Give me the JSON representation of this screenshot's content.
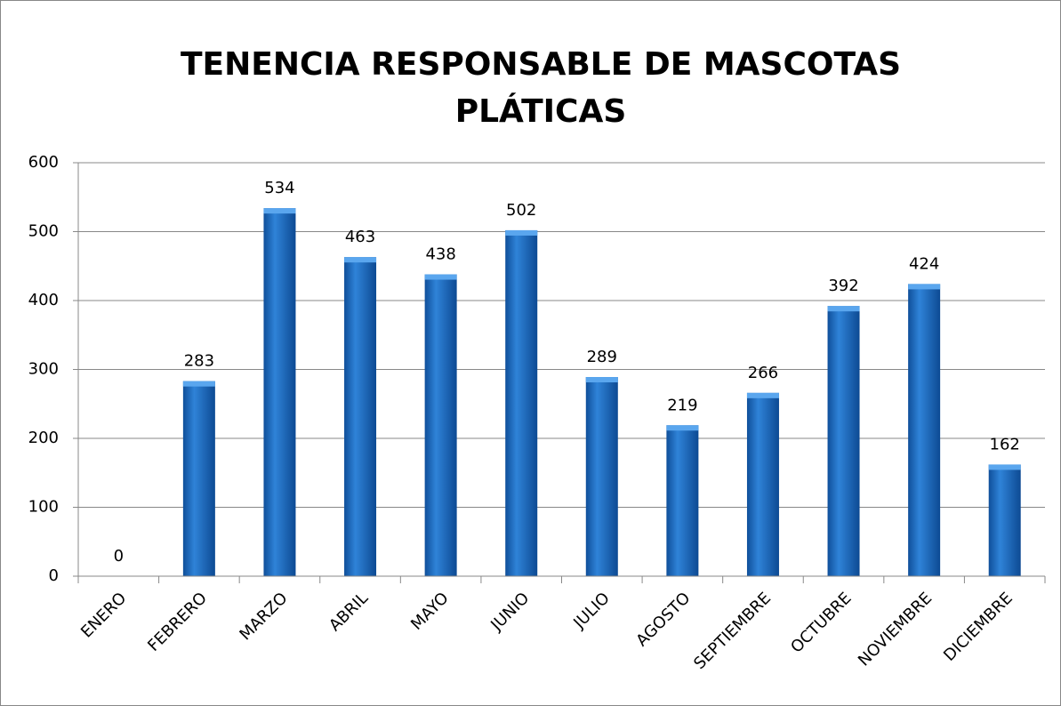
{
  "chart_data": {
    "type": "bar",
    "title": [
      "TENENCIA RESPONSABLE DE MASCOTAS",
      "PLÁTICAS"
    ],
    "categories": [
      "ENERO",
      "FEBRERO",
      "MARZO",
      "ABRIL",
      "MAYO",
      "JUNIO",
      "JULIO",
      "AGOSTO",
      "SEPTIEMBRE",
      "OCTUBRE",
      "NOVIEMBRE",
      "DICIEMBRE"
    ],
    "values": [
      0,
      283,
      534,
      463,
      438,
      502,
      289,
      219,
      266,
      392,
      424,
      162
    ],
    "color": "#1f6fc5",
    "ylim": [
      0,
      600
    ],
    "yticks": [
      0,
      100,
      200,
      300,
      400,
      500,
      600
    ],
    "grid": true
  }
}
